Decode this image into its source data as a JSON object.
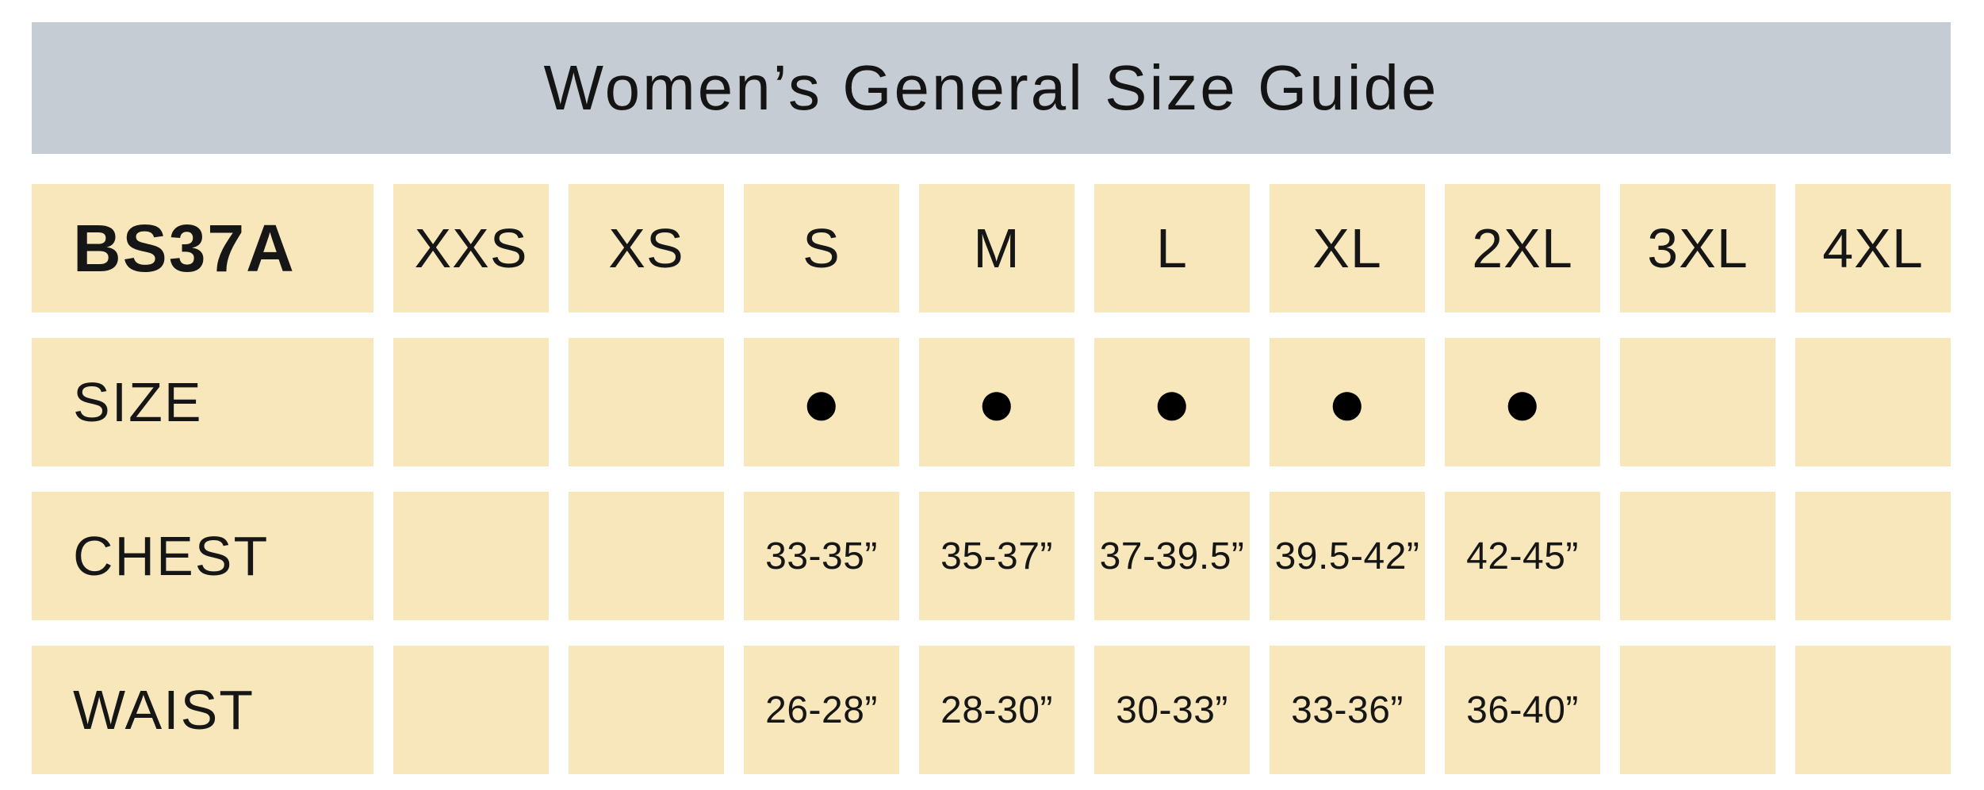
{
  "page_title": "Women’s General Size Guide",
  "colors": {
    "header_bg": "#C5CCD3",
    "cell_bg": "#F7E7BA",
    "text": "#161616",
    "dot": "#000000",
    "page_bg": "#FFFFFF"
  },
  "chart_data": {
    "type": "table",
    "title": "Women’s General Size Guide",
    "product_code": "BS37A",
    "columns": [
      "XXS",
      "XS",
      "S",
      "M",
      "L",
      "XL",
      "2XL",
      "3XL",
      "4XL"
    ],
    "rows": [
      {
        "label": "SIZE",
        "values": [
          "",
          "",
          "●",
          "●",
          "●",
          "●",
          "●",
          "",
          ""
        ]
      },
      {
        "label": "CHEST",
        "values": [
          "",
          "",
          "33-35”",
          "35-37”",
          "37-39.5”",
          "39.5-42”",
          "42-45”",
          "",
          ""
        ]
      },
      {
        "label": "WAIST",
        "values": [
          "",
          "",
          "26-28”",
          "28-30”",
          "30-33”",
          "33-36”",
          "36-40”",
          "",
          ""
        ]
      }
    ]
  }
}
